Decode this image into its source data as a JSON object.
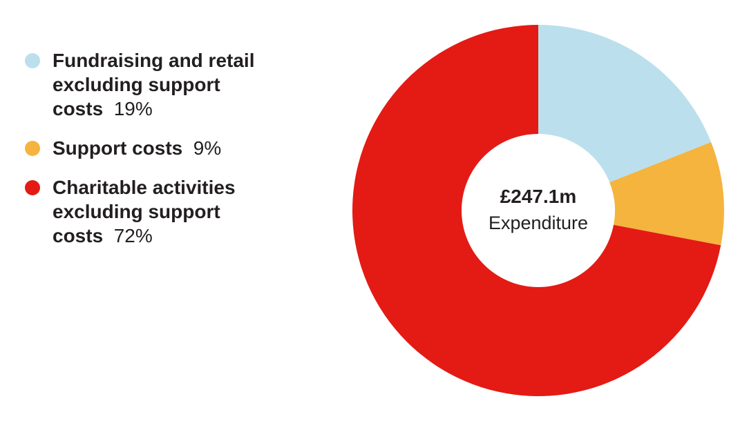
{
  "chart_data": {
    "type": "pie",
    "categories": [
      "Fundraising and retail excluding support costs",
      "Support costs",
      "Charitable activities excluding support costs"
    ],
    "values": [
      19,
      9,
      72
    ],
    "unit": "%",
    "colors": [
      "#bbdfed",
      "#f4b43e",
      "#e31b14"
    ],
    "center_amount": "£247.1m",
    "center_caption": "Expenditure",
    "legend": [
      {
        "label": "Fundraising and retail excluding support costs",
        "pct": "19%",
        "color": "#bbdfed"
      },
      {
        "label": "Support costs",
        "pct": "9%",
        "color": "#f4b43e"
      },
      {
        "label": "Charitable activities excluding support costs",
        "pct": "72%",
        "color": "#e31b14"
      }
    ],
    "legend_placement": "left"
  }
}
